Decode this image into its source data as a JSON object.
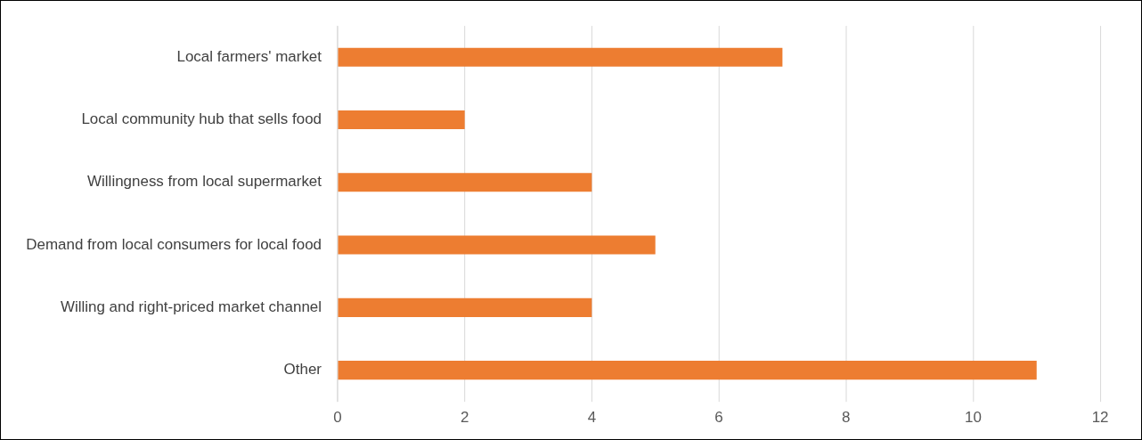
{
  "chart_data": {
    "type": "bar",
    "orientation": "horizontal",
    "categories": [
      "Local farmers' market",
      "Local community hub that sells food",
      "Willingness from local supermarket",
      "Demand from local consumers for local food",
      "Willing and right-priced market channel",
      "Other"
    ],
    "values": [
      7,
      2,
      4,
      5,
      4,
      11
    ],
    "color": "#ed7d31",
    "xlim": [
      0,
      12
    ],
    "xticks": [
      0,
      2,
      4,
      6,
      8,
      10,
      12
    ],
    "grid": "x",
    "legend": false
  }
}
